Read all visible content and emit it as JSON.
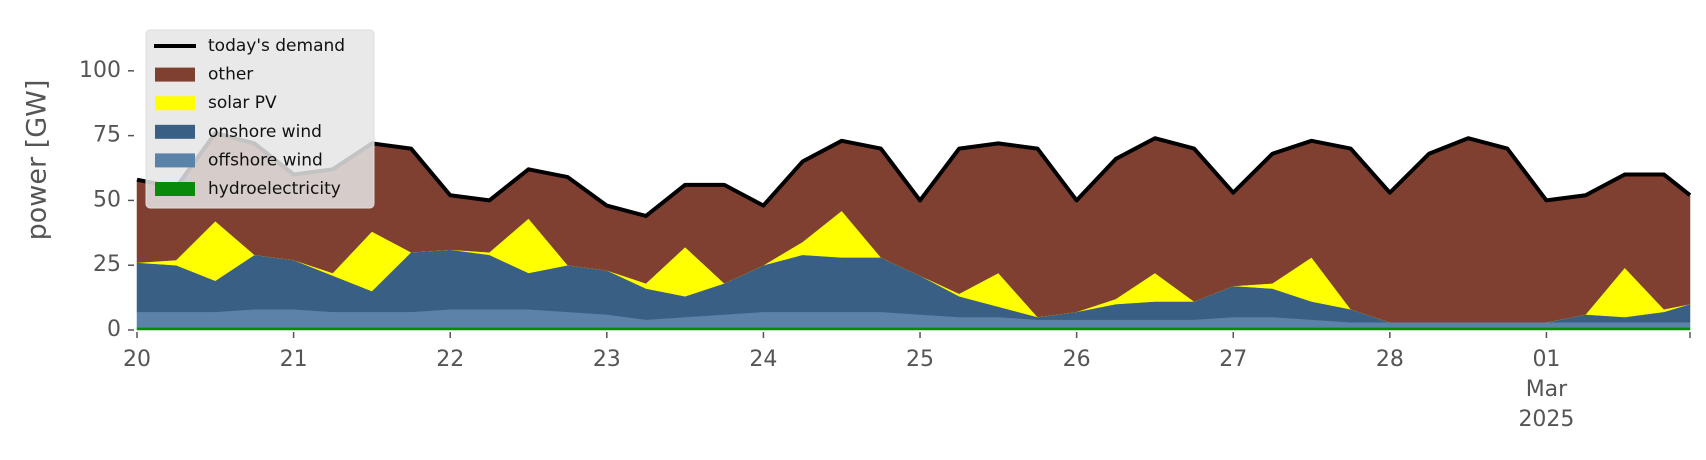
{
  "chart_data": {
    "type": "stacked_area",
    "y_label": "power [GW]",
    "x": [
      "2025-02-20T00:00",
      "2025-02-20T06:00",
      "2025-02-20T12:00",
      "2025-02-20T18:00",
      "2025-02-21T00:00",
      "2025-02-21T06:00",
      "2025-02-21T12:00",
      "2025-02-21T18:00",
      "2025-02-22T00:00",
      "2025-02-22T06:00",
      "2025-02-22T12:00",
      "2025-02-22T18:00",
      "2025-02-23T00:00",
      "2025-02-23T06:00",
      "2025-02-23T12:00",
      "2025-02-23T18:00",
      "2025-02-24T00:00",
      "2025-02-24T06:00",
      "2025-02-24T12:00",
      "2025-02-24T18:00",
      "2025-02-25T00:00",
      "2025-02-25T06:00",
      "2025-02-25T12:00",
      "2025-02-25T18:00",
      "2025-02-26T00:00",
      "2025-02-26T06:00",
      "2025-02-26T12:00",
      "2025-02-26T18:00",
      "2025-02-27T00:00",
      "2025-02-27T06:00",
      "2025-02-27T12:00",
      "2025-02-27T18:00",
      "2025-02-28T00:00",
      "2025-02-28T06:00",
      "2025-02-28T12:00",
      "2025-02-28T18:00",
      "2025-03-01T00:00",
      "2025-03-01T06:00",
      "2025-03-01T12:00",
      "2025-03-01T18:00",
      "2025-03-01T22:00"
    ],
    "xlim": [
      "2025-02-20T00:00",
      "2025-03-01T22:00"
    ],
    "xticks": [
      {
        "value": "2025-02-20T00:00",
        "label": [
          "20"
        ]
      },
      {
        "value": "2025-02-21T00:00",
        "label": [
          "21"
        ]
      },
      {
        "value": "2025-02-22T00:00",
        "label": [
          "22"
        ]
      },
      {
        "value": "2025-02-23T00:00",
        "label": [
          "23"
        ]
      },
      {
        "value": "2025-02-24T00:00",
        "label": [
          "24"
        ]
      },
      {
        "value": "2025-02-25T00:00",
        "label": [
          "25"
        ]
      },
      {
        "value": "2025-02-26T00:00",
        "label": [
          "26"
        ]
      },
      {
        "value": "2025-02-27T00:00",
        "label": [
          "27"
        ]
      },
      {
        "value": "2025-02-28T00:00",
        "label": [
          "28"
        ]
      },
      {
        "value": "2025-03-01T00:00",
        "label": [
          "01",
          "Mar",
          "2025"
        ]
      }
    ],
    "ylim": [
      0,
      120
    ],
    "yticks": [
      0,
      25,
      50,
      75,
      100
    ],
    "grid": false,
    "legend": "upper left",
    "series": [
      {
        "name": "today's demand",
        "type": "line",
        "color": "#000000",
        "values": [
          58,
          55,
          76,
          72,
          60,
          62,
          72,
          70,
          52,
          50,
          62,
          59,
          48,
          44,
          56,
          56,
          48,
          65,
          73,
          70,
          50,
          70,
          72,
          70,
          50,
          66,
          74,
          70,
          53,
          68,
          73,
          70,
          53,
          68,
          74,
          70,
          50,
          52,
          60,
          60,
          52
        ]
      },
      {
        "name": "other",
        "color": "#7f4032",
        "values": [
          32,
          28,
          34,
          43,
          33,
          40,
          34,
          40,
          21,
          20,
          19,
          34,
          25,
          26,
          24,
          38,
          23,
          31,
          27,
          42,
          29,
          56,
          50,
          65,
          43,
          54,
          52,
          59,
          36,
          50,
          45,
          62,
          50,
          65,
          71,
          67,
          47,
          46,
          36,
          52,
          42
        ]
      },
      {
        "name": "solar PV",
        "color": "#ffff00",
        "values": [
          0,
          2,
          23,
          0,
          0,
          1,
          23,
          0,
          0,
          1,
          21,
          0,
          0,
          2,
          19,
          0,
          0,
          5,
          18,
          0,
          0,
          1,
          13,
          0,
          0,
          2,
          11,
          0,
          0,
          2,
          17,
          0,
          0,
          0,
          0,
          0,
          0,
          0,
          19,
          1,
          0
        ]
      },
      {
        "name": "onshore wind",
        "color": "#3a5f84",
        "values": [
          19,
          18,
          12,
          21,
          19,
          14,
          8,
          23,
          23,
          21,
          14,
          18,
          17,
          12,
          8,
          12,
          18,
          22,
          21,
          21,
          15,
          8,
          4,
          1,
          3,
          6,
          7,
          7,
          12,
          11,
          7,
          5,
          0,
          0,
          0,
          0,
          0,
          3,
          2,
          4,
          7
        ]
      },
      {
        "name": "offshore wind",
        "color": "#5b82a8",
        "values": [
          6,
          6,
          6,
          7,
          7,
          6,
          6,
          6,
          7,
          7,
          7,
          6,
          5,
          3,
          4,
          5,
          6,
          6,
          6,
          6,
          5,
          4,
          4,
          3,
          3,
          3,
          3,
          3,
          4,
          4,
          3,
          2,
          2,
          2,
          2,
          2,
          2,
          2,
          2,
          2,
          2
        ]
      },
      {
        "name": "hydroelectricity",
        "color": "#0a8a0a",
        "values": [
          1,
          1,
          1,
          1,
          1,
          1,
          1,
          1,
          1,
          1,
          1,
          1,
          1,
          1,
          1,
          1,
          1,
          1,
          1,
          1,
          1,
          1,
          1,
          1,
          1,
          1,
          1,
          1,
          1,
          1,
          1,
          1,
          1,
          1,
          1,
          1,
          1,
          1,
          1,
          1,
          1
        ]
      }
    ]
  }
}
